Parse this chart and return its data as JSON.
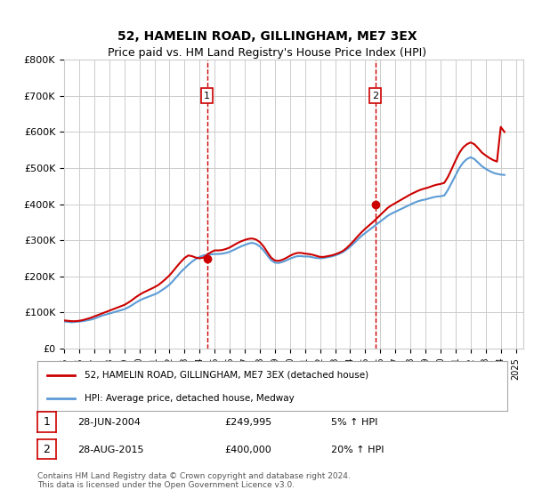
{
  "title": "52, HAMELIN ROAD, GILLINGHAM, ME7 3EX",
  "subtitle": "Price paid vs. HM Land Registry's House Price Index (HPI)",
  "ylabel_ticks": [
    "£0",
    "£100K",
    "£200K",
    "£300K",
    "£400K",
    "£500K",
    "£600K",
    "£700K",
    "£800K"
  ],
  "ylim": [
    0,
    800000
  ],
  "xlim_start": 1995,
  "xlim_end": 2025.5,
  "transaction1": {
    "date": 2004.49,
    "price": 249995,
    "label": "1"
  },
  "transaction2": {
    "date": 2015.66,
    "price": 400000,
    "label": "2"
  },
  "legend_line1": "52, HAMELIN ROAD, GILLINGHAM, ME7 3EX (detached house)",
  "legend_line2": "HPI: Average price, detached house, Medway",
  "table_row1_num": "1",
  "table_row1_date": "28-JUN-2004",
  "table_row1_price": "£249,995",
  "table_row1_hpi": "5% ↑ HPI",
  "table_row2_num": "2",
  "table_row2_date": "28-AUG-2015",
  "table_row2_price": "£400,000",
  "table_row2_hpi": "20% ↑ HPI",
  "footnote": "Contains HM Land Registry data © Crown copyright and database right 2024.\nThis data is licensed under the Open Government Licence v3.0.",
  "line_color_red": "#cc0000",
  "line_color_blue": "#5b9bd5",
  "vline_color": "#cc0000",
  "grid_color": "#cccccc",
  "background_color": "#ffffff",
  "hpi_data_x": [
    1995.0,
    1995.25,
    1995.5,
    1995.75,
    1996.0,
    1996.25,
    1996.5,
    1996.75,
    1997.0,
    1997.25,
    1997.5,
    1997.75,
    1998.0,
    1998.25,
    1998.5,
    1998.75,
    1999.0,
    1999.25,
    1999.5,
    1999.75,
    2000.0,
    2000.25,
    2000.5,
    2000.75,
    2001.0,
    2001.25,
    2001.5,
    2001.75,
    2002.0,
    2002.25,
    2002.5,
    2002.75,
    2003.0,
    2003.25,
    2003.5,
    2003.75,
    2004.0,
    2004.25,
    2004.5,
    2004.75,
    2005.0,
    2005.25,
    2005.5,
    2005.75,
    2006.0,
    2006.25,
    2006.5,
    2006.75,
    2007.0,
    2007.25,
    2007.5,
    2007.75,
    2008.0,
    2008.25,
    2008.5,
    2008.75,
    2009.0,
    2009.25,
    2009.5,
    2009.75,
    2010.0,
    2010.25,
    2010.5,
    2010.75,
    2011.0,
    2011.25,
    2011.5,
    2011.75,
    2012.0,
    2012.25,
    2012.5,
    2012.75,
    2013.0,
    2013.25,
    2013.5,
    2013.75,
    2014.0,
    2014.25,
    2014.5,
    2014.75,
    2015.0,
    2015.25,
    2015.5,
    2015.75,
    2016.0,
    2016.25,
    2016.5,
    2016.75,
    2017.0,
    2017.25,
    2017.5,
    2017.75,
    2018.0,
    2018.25,
    2018.5,
    2018.75,
    2019.0,
    2019.25,
    2019.5,
    2019.75,
    2020.0,
    2020.25,
    2020.5,
    2020.75,
    2021.0,
    2021.25,
    2021.5,
    2021.75,
    2022.0,
    2022.25,
    2022.5,
    2022.75,
    2023.0,
    2023.25,
    2023.5,
    2023.75,
    2024.0,
    2024.25
  ],
  "hpi_data_y": [
    75000,
    74000,
    73000,
    74000,
    75000,
    76000,
    78000,
    80000,
    83000,
    87000,
    91000,
    94000,
    97000,
    100000,
    103000,
    106000,
    109000,
    114000,
    120000,
    127000,
    133000,
    138000,
    142000,
    146000,
    150000,
    155000,
    162000,
    169000,
    177000,
    188000,
    200000,
    212000,
    222000,
    232000,
    241000,
    248000,
    254000,
    258000,
    260000,
    261000,
    262000,
    262000,
    263000,
    265000,
    268000,
    273000,
    278000,
    283000,
    287000,
    291000,
    293000,
    290000,
    283000,
    272000,
    258000,
    245000,
    238000,
    237000,
    240000,
    244000,
    249000,
    253000,
    256000,
    256000,
    255000,
    255000,
    253000,
    251000,
    250000,
    251000,
    253000,
    255000,
    258000,
    262000,
    267000,
    274000,
    282000,
    292000,
    302000,
    312000,
    320000,
    328000,
    336000,
    344000,
    352000,
    360000,
    368000,
    374000,
    379000,
    384000,
    389000,
    394000,
    399000,
    404000,
    408000,
    411000,
    413000,
    416000,
    419000,
    421000,
    422000,
    424000,
    440000,
    460000,
    480000,
    500000,
    515000,
    525000,
    530000,
    525000,
    515000,
    505000,
    498000,
    492000,
    487000,
    484000,
    482000,
    481000
  ],
  "price_data_x": [
    1995.0,
    1995.25,
    1995.5,
    1995.75,
    1996.0,
    1996.25,
    1996.5,
    1996.75,
    1997.0,
    1997.25,
    1997.5,
    1997.75,
    1998.0,
    1998.25,
    1998.5,
    1998.75,
    1999.0,
    1999.25,
    1999.5,
    1999.75,
    2000.0,
    2000.25,
    2000.5,
    2000.75,
    2001.0,
    2001.25,
    2001.5,
    2001.75,
    2002.0,
    2002.25,
    2002.5,
    2002.75,
    2003.0,
    2003.25,
    2003.5,
    2003.75,
    2004.0,
    2004.25,
    2004.5,
    2004.75,
    2005.0,
    2005.25,
    2005.5,
    2005.75,
    2006.0,
    2006.25,
    2006.5,
    2006.75,
    2007.0,
    2007.25,
    2007.5,
    2007.75,
    2008.0,
    2008.25,
    2008.5,
    2008.75,
    2009.0,
    2009.25,
    2009.5,
    2009.75,
    2010.0,
    2010.25,
    2010.5,
    2010.75,
    2011.0,
    2011.25,
    2011.5,
    2011.75,
    2012.0,
    2012.25,
    2012.5,
    2012.75,
    2013.0,
    2013.25,
    2013.5,
    2013.75,
    2014.0,
    2014.25,
    2014.5,
    2014.75,
    2015.0,
    2015.25,
    2015.5,
    2015.75,
    2016.0,
    2016.25,
    2016.5,
    2016.75,
    2017.0,
    2017.25,
    2017.5,
    2017.75,
    2018.0,
    2018.25,
    2018.5,
    2018.75,
    2019.0,
    2019.25,
    2019.5,
    2019.75,
    2020.0,
    2020.25,
    2020.5,
    2020.75,
    2021.0,
    2021.25,
    2021.5,
    2021.75,
    2022.0,
    2022.25,
    2022.5,
    2022.75,
    2023.0,
    2023.25,
    2023.5,
    2023.75,
    2024.0,
    2024.25
  ],
  "price_data_y": [
    78000,
    77000,
    76000,
    76000,
    77000,
    79000,
    82000,
    85000,
    89000,
    93000,
    97000,
    101000,
    105000,
    109000,
    113000,
    117000,
    121000,
    127000,
    134000,
    142000,
    149000,
    155000,
    160000,
    165000,
    170000,
    176000,
    184000,
    193000,
    203000,
    215000,
    228000,
    240000,
    251000,
    258000,
    256000,
    252000,
    250000,
    252000,
    260000,
    267000,
    272000,
    272000,
    273000,
    276000,
    280000,
    286000,
    292000,
    297000,
    301000,
    304000,
    305000,
    302000,
    295000,
    283000,
    267000,
    252000,
    244000,
    243000,
    246000,
    251000,
    257000,
    262000,
    265000,
    265000,
    263000,
    262000,
    260000,
    257000,
    254000,
    254000,
    256000,
    258000,
    261000,
    265000,
    270000,
    278000,
    288000,
    299000,
    311000,
    322000,
    332000,
    341000,
    350000,
    360000,
    370000,
    380000,
    390000,
    397000,
    403000,
    409000,
    415000,
    421000,
    427000,
    432000,
    437000,
    441000,
    444000,
    447000,
    451000,
    454000,
    456000,
    459000,
    476000,
    498000,
    521000,
    542000,
    557000,
    566000,
    571000,
    566000,
    555000,
    543000,
    535000,
    528000,
    522000,
    518000,
    614000,
    600000
  ]
}
